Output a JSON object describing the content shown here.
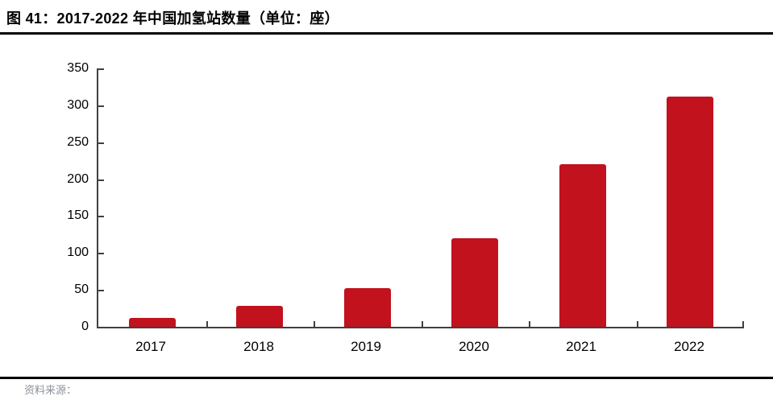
{
  "page": {
    "title": "图 41：2017-2022 年中国加氢站数量（单位：座）",
    "footer_source": "资料来源："
  },
  "colors": {
    "bar": "#C1121E",
    "divider": "#000000",
    "axis": "#404040",
    "text": "#000000",
    "footer_text": "#8b9099"
  },
  "chart_data": {
    "type": "bar",
    "title": "2017-2022 年中国加氢站数量（单位：座）",
    "categories": [
      "2017",
      "2018",
      "2019",
      "2020",
      "2021",
      "2022"
    ],
    "values": [
      12,
      28,
      52,
      120,
      220,
      312
    ],
    "xlabel": "",
    "ylabel": "",
    "ylim": [
      0,
      350
    ],
    "yticks": [
      0,
      50,
      100,
      150,
      200,
      250,
      300,
      350
    ],
    "bar_color": "#C1121E",
    "grid": false,
    "legend_position": "none"
  }
}
